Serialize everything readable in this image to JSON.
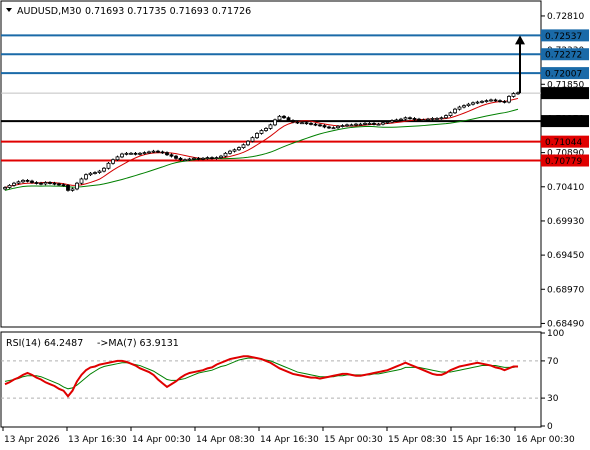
{
  "header": {
    "symbol_timeframe": "AUDUSD,M30",
    "ohlc": "0.71693 0.71735 0.71693 0.71726"
  },
  "indicator_header": {
    "rsi_label": "RSI(14) 64.2487",
    "ma_label": "->MA(7) 63.9131"
  },
  "colors": {
    "candle": "#000000",
    "ma_fast": "#d40000",
    "ma_slow": "#008000",
    "resistance": "#1a6aa8",
    "support": "#e00000",
    "pivot": "#000000",
    "price_tag": "#000000",
    "arrow": "#000000",
    "rsi_line": "#e00000",
    "rsi_ma": "#008000"
  },
  "chart_data": {
    "type": "candlestick",
    "price_axis": {
      "ticks": [
        "0.72810",
        "0.72330",
        "0.71850",
        "0.71370",
        "0.70890",
        "0.70410",
        "0.69930",
        "0.69450",
        "0.68970",
        "0.68490"
      ],
      "range": [
        0.6844,
        0.7302
      ]
    },
    "horizontal_levels": [
      {
        "value": 0.72537,
        "label": "0.72537",
        "kind": "resistance"
      },
      {
        "value": 0.72272,
        "label": "0.72272",
        "kind": "resistance"
      },
      {
        "value": 0.72007,
        "label": "0.72007",
        "kind": "resistance"
      },
      {
        "value": 0.71333,
        "label": "0.71333",
        "kind": "pivot"
      },
      {
        "value": 0.71044,
        "label": "0.71044",
        "kind": "support"
      },
      {
        "value": 0.70779,
        "label": "0.70779",
        "kind": "support"
      }
    ],
    "current_price": {
      "value": 0.71726,
      "label": "0.71726"
    },
    "projection_arrow": {
      "from": 0.71726,
      "to": 0.72537
    },
    "close_series": [
      0.704,
      0.7043,
      0.7046,
      0.7048,
      0.705,
      0.7049,
      0.7047,
      0.7046,
      0.7045,
      0.7047,
      0.7046,
      0.7045,
      0.7044,
      0.7043,
      0.7036,
      0.7038,
      0.7046,
      0.7052,
      0.7058,
      0.706,
      0.7061,
      0.7063,
      0.7067,
      0.7074,
      0.7079,
      0.7083,
      0.7087,
      0.7088,
      0.7088,
      0.7087,
      0.7088,
      0.7089,
      0.709,
      0.7091,
      0.709,
      0.7089,
      0.7086,
      0.7084,
      0.7081,
      0.7079,
      0.7079,
      0.708,
      0.7081,
      0.708,
      0.7081,
      0.7082,
      0.7081,
      0.7082,
      0.7084,
      0.7088,
      0.7091,
      0.7093,
      0.7096,
      0.71,
      0.7105,
      0.711,
      0.7116,
      0.712,
      0.7123,
      0.7128,
      0.7135,
      0.714,
      0.7138,
      0.7134,
      0.7132,
      0.7131,
      0.7131,
      0.713,
      0.7129,
      0.7128,
      0.7127,
      0.7125,
      0.7124,
      0.7124,
      0.7126,
      0.7127,
      0.7128,
      0.7128,
      0.7129,
      0.7129,
      0.713,
      0.713,
      0.7129,
      0.7129,
      0.7131,
      0.7132,
      0.7134,
      0.7135,
      0.7136,
      0.7138,
      0.7137,
      0.7136,
      0.7135,
      0.7135,
      0.7136,
      0.7137,
      0.7137,
      0.7138,
      0.7141,
      0.7145,
      0.715,
      0.7153,
      0.7155,
      0.7157,
      0.7159,
      0.716,
      0.7161,
      0.7162,
      0.7163,
      0.7162,
      0.7161,
      0.716,
      0.7168,
      0.7172,
      0.7173
    ],
    "rsi": {
      "levels": [
        {
          "value": 70,
          "label": "70"
        },
        {
          "value": 30,
          "label": "30"
        }
      ],
      "axis_ticks": [
        "100",
        "0"
      ],
      "range": [
        0,
        100
      ],
      "values": [
        45,
        47,
        50,
        52,
        55,
        57,
        55,
        52,
        50,
        47,
        45,
        43,
        40,
        38,
        32,
        38,
        48,
        55,
        60,
        63,
        64,
        66,
        67,
        68,
        69,
        70,
        70,
        69,
        67,
        65,
        62,
        60,
        58,
        55,
        50,
        46,
        42,
        45,
        48,
        52,
        55,
        57,
        58,
        59,
        60,
        62,
        63,
        66,
        68,
        70,
        72,
        73,
        74,
        75,
        75,
        74,
        73,
        72,
        70,
        68,
        65,
        62,
        60,
        58,
        56,
        55,
        54,
        53,
        52,
        52,
        51,
        52,
        53,
        54,
        55,
        56,
        56,
        55,
        54,
        54,
        55,
        56,
        57,
        58,
        59,
        60,
        62,
        64,
        66,
        68,
        66,
        64,
        62,
        60,
        58,
        56,
        55,
        55,
        57,
        60,
        62,
        64,
        65,
        66,
        67,
        68,
        67,
        66,
        65,
        63,
        62,
        60,
        62,
        64,
        64
      ],
      "ma_values": [
        48,
        49,
        50,
        51,
        53,
        54,
        54,
        54,
        53,
        51,
        49,
        47,
        45,
        42,
        40,
        41,
        44,
        48,
        52,
        56,
        59,
        62,
        64,
        65,
        66,
        67,
        68,
        68,
        67,
        66,
        65,
        63,
        61,
        59,
        56,
        53,
        50,
        49,
        49,
        50,
        51,
        53,
        55,
        57,
        58,
        59,
        60,
        62,
        64,
        65,
        67,
        69,
        71,
        72,
        73,
        73,
        73,
        72,
        71,
        70,
        68,
        66,
        64,
        62,
        60,
        58,
        57,
        56,
        55,
        54,
        53,
        53,
        53,
        53,
        54,
        54,
        55,
        55,
        55,
        55,
        55,
        55,
        56,
        56,
        57,
        58,
        59,
        60,
        61,
        63,
        63,
        63,
        63,
        62,
        61,
        60,
        59,
        58,
        58,
        58,
        59,
        60,
        61,
        62,
        63,
        64,
        65,
        65,
        65,
        65,
        64,
        63,
        63,
        63,
        64
      ]
    },
    "time_axis": [
      "13 Apr 2026",
      "13 Apr 16:30",
      "14 Apr 00:30",
      "14 Apr 08:30",
      "14 Apr 16:30",
      "15 Apr 00:30",
      "15 Apr 08:30",
      "15 Apr 16:30",
      "16 Apr 00:30"
    ]
  }
}
